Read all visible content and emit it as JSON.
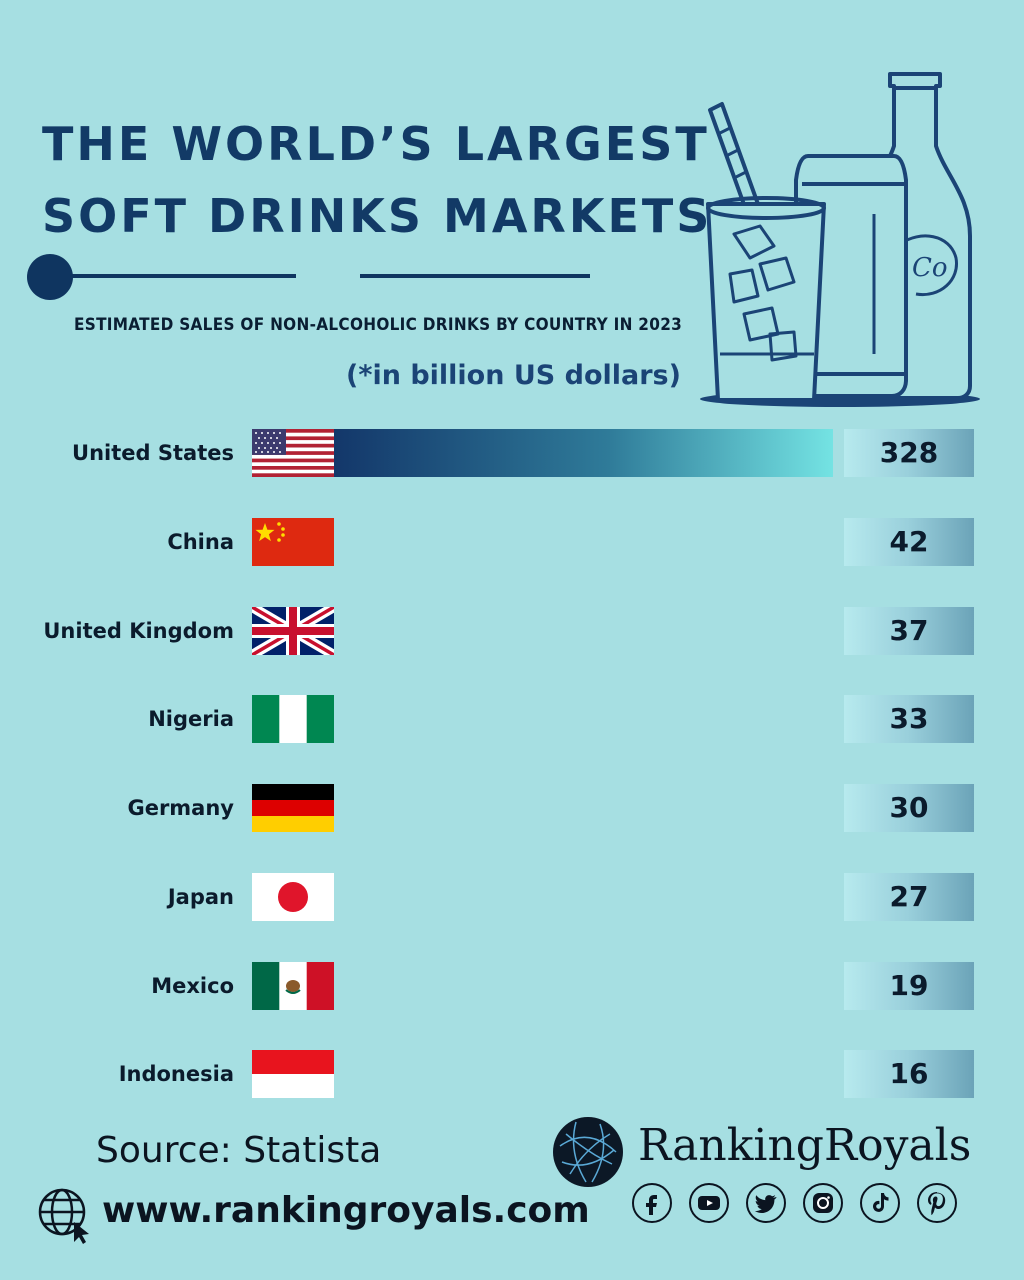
{
  "header": {
    "title_line1": "THE WORLD’S LARGEST",
    "title_line2": "SOFT DRINKS MARKETS",
    "subtitle": "ESTIMATED SALES OF NON-ALCOHOLIC DRINKS BY COUNTRY IN 2023",
    "unit_note": "(*in billion US dollars)"
  },
  "chart_data": {
    "type": "bar",
    "orientation": "horizontal",
    "title": "THE WORLD’S LARGEST SOFT DRINKS MARKETS",
    "subtitle": "ESTIMATED SALES OF NON-ALCOHOLIC DRINKS BY COUNTRY IN 2023",
    "categories": [
      "United States",
      "China",
      "United Kingdom",
      "Nigeria",
      "Germany",
      "Japan",
      "Mexico",
      "Indonesia"
    ],
    "values": [
      328,
      42,
      37,
      33,
      30,
      27,
      19,
      16
    ],
    "value_labels": [
      "328",
      "42",
      "37",
      "33",
      "30",
      "27",
      "19",
      "16"
    ],
    "flags": [
      "us-flag-icon",
      "china-flag-icon",
      "uk-flag-icon",
      "nigeria-flag-icon",
      "germany-flag-icon",
      "japan-flag-icon",
      "mexico-flag-icon",
      "indonesia-flag-icon"
    ],
    "colors": {
      "bar_start": "#13376a",
      "bar_end": "#74e3e3",
      "background": "#a6dfe2"
    },
    "xlim": [
      0,
      328
    ],
    "grid": false
  },
  "footer": {
    "source": "Source: Statista",
    "website": "www.rankingroyals.com",
    "brand": "RankingRoyals",
    "socials": [
      "facebook-icon",
      "youtube-icon",
      "twitter-icon",
      "instagram-icon",
      "tiktok-icon",
      "pinterest-icon"
    ]
  }
}
